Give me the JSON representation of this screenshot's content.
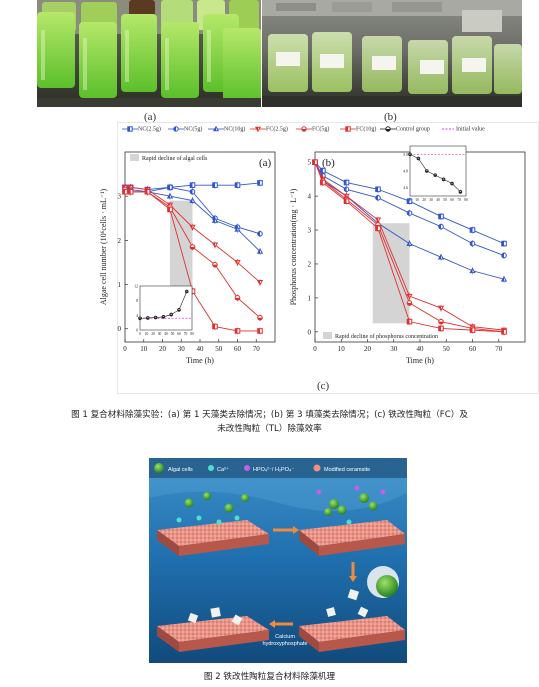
{
  "photos": {
    "a": {
      "label": "(a)",
      "bottle_labels": []
    },
    "b": {
      "label": "(b)"
    }
  },
  "chart_panel_label": "(c)",
  "legend": [
    {
      "name": "NC(2.5g)",
      "color": "#3355cc",
      "marker": "square"
    },
    {
      "name": "NC(5g)",
      "color": "#3355cc",
      "marker": "circle"
    },
    {
      "name": "NC(10g)",
      "color": "#3355cc",
      "marker": "triangle"
    },
    {
      "name": "FC(2.5g)",
      "color": "#e03030",
      "marker": "triangle-down"
    },
    {
      "name": "FC(5g)",
      "color": "#e03030",
      "marker": "half-circle"
    },
    {
      "name": "FC(10g)",
      "color": "#e03030",
      "marker": "square"
    },
    {
      "name": "Control group",
      "color": "#222222",
      "marker": "half-circle"
    },
    {
      "name": "Initial value",
      "color": "#cc44cc",
      "marker": "dash"
    }
  ],
  "chart_data": [
    {
      "type": "line",
      "panel": "(a)",
      "xlabel": "Time (h)",
      "ylabel": "Algae cell number (10⁶cells · mL⁻¹)",
      "xlim": [
        0,
        80
      ],
      "ylim": [
        -0.3,
        4.0
      ],
      "xticks": [
        0,
        10,
        20,
        30,
        40,
        50,
        60,
        70
      ],
      "yticks": [
        0,
        1,
        2,
        3
      ],
      "annotation": "Rapid decline of algal cells",
      "shaded_x": [
        24,
        36
      ],
      "x": [
        0,
        3,
        12,
        24,
        36,
        48,
        60,
        72
      ],
      "series": [
        {
          "name": "NC(2.5g)",
          "values": [
            3.2,
            3.2,
            3.15,
            3.2,
            3.25,
            3.25,
            3.25,
            3.3
          ]
        },
        {
          "name": "NC(5g)",
          "values": [
            3.2,
            3.15,
            3.1,
            3.2,
            3.1,
            2.5,
            2.3,
            2.15
          ]
        },
        {
          "name": "NC(10g)",
          "values": [
            3.15,
            3.1,
            3.1,
            3.0,
            2.9,
            2.45,
            2.25,
            1.75
          ]
        },
        {
          "name": "FC(2.5g)",
          "values": [
            3.2,
            3.2,
            3.15,
            2.8,
            2.3,
            1.9,
            1.5,
            1.05
          ]
        },
        {
          "name": "FC(5g)",
          "values": [
            3.15,
            3.1,
            3.1,
            2.75,
            1.85,
            1.45,
            0.7,
            0.25
          ]
        },
        {
          "name": "FC(10g)",
          "values": [
            3.1,
            3.1,
            3.1,
            2.7,
            0.85,
            0.05,
            -0.05,
            -0.05
          ]
        }
      ],
      "inset": {
        "xticks": [
          0,
          10,
          20,
          30,
          40,
          50,
          60,
          70,
          80
        ],
        "yticks": [
          0,
          4,
          8,
          12
        ],
        "x": [
          0,
          12,
          24,
          36,
          48,
          60,
          72
        ],
        "control": [
          3.2,
          3.3,
          3.4,
          3.6,
          4.2,
          5.5,
          10.5
        ],
        "initial": 3.2
      }
    },
    {
      "type": "line",
      "panel": "(b)",
      "xlabel": "Time (h)",
      "ylabel": "Phosphorus concentration(mg · L⁻¹)",
      "xlim": [
        0,
        80
      ],
      "ylim": [
        -0.3,
        5.3
      ],
      "xticks": [
        0,
        10,
        20,
        30,
        40,
        50,
        60,
        70
      ],
      "yticks": [
        0,
        1,
        2,
        3,
        4,
        5
      ],
      "annotation": "Rapid decline of phosphorus concentration",
      "shaded_x": [
        22,
        36
      ],
      "x": [
        0,
        3,
        12,
        24,
        36,
        48,
        60,
        72
      ],
      "series": [
        {
          "name": "NC(2.5g)",
          "values": [
            5.0,
            4.75,
            4.4,
            4.2,
            3.85,
            3.4,
            3.0,
            2.6
          ]
        },
        {
          "name": "NC(5g)",
          "values": [
            5.0,
            4.6,
            4.2,
            3.95,
            3.5,
            3.1,
            2.6,
            2.25
          ]
        },
        {
          "name": "NC(10g)",
          "values": [
            5.0,
            4.45,
            4.0,
            3.2,
            2.6,
            2.2,
            1.8,
            1.55
          ]
        },
        {
          "name": "FC(2.5g)",
          "values": [
            5.0,
            4.5,
            4.0,
            3.3,
            1.05,
            0.7,
            0.15,
            0.05
          ]
        },
        {
          "name": "FC(5g)",
          "values": [
            5.0,
            4.45,
            3.9,
            3.15,
            0.85,
            0.3,
            0.1,
            0.0
          ]
        },
        {
          "name": "FC(10g)",
          "values": [
            5.0,
            4.4,
            3.85,
            3.05,
            0.3,
            0.1,
            0.05,
            0.0
          ]
        }
      ],
      "inset": {
        "xticks": [
          0,
          10,
          20,
          30,
          40,
          50,
          60,
          70,
          80
        ],
        "yticks": [
          4.5,
          4.6,
          4.7,
          4.8,
          4.9,
          5.0,
          5.1
        ],
        "ytick_labels": [
          "4.6",
          "4.8",
          "5.0"
        ],
        "x": [
          0,
          12,
          24,
          36,
          48,
          60,
          72
        ],
        "control": [
          5.0,
          4.95,
          4.8,
          4.75,
          4.7,
          4.65,
          4.55
        ],
        "initial": 5.0
      }
    }
  ],
  "caption1_line1": "图 1  复合材料除藻实验：(a) 第 1 天藻类去除情况；(b) 第 3 填藻类去除情况；(c) 铁改性陶粒（FC）及",
  "caption1_line2": "未改性陶粒（TL）除藻效率",
  "fig2": {
    "legend": {
      "algae": "Algal cells",
      "ca": "Ca²⁺",
      "hpo": "HPO₄²⁻/ H₂PO₄⁻",
      "ceramsite": "Modified ceramsite"
    },
    "label_bottom": "Calcium\nhydroxyphosphate"
  },
  "caption2": "图 2  铁改性陶粒复合材料除藻机理"
}
